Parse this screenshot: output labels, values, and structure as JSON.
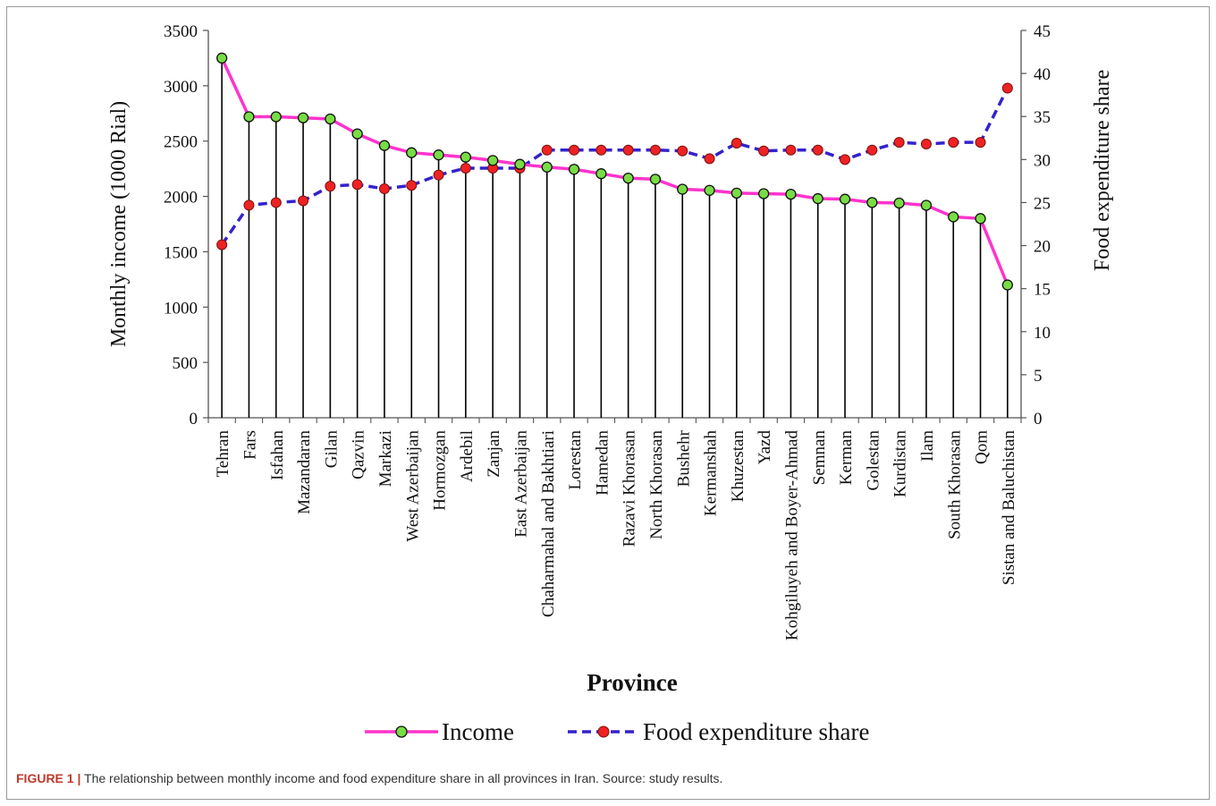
{
  "caption": {
    "label": "FIGURE 1 |",
    "text": "The relationship between monthly income and food expenditure share in all provinces in Iran. Source: study results."
  },
  "chart_data": {
    "type": "line",
    "xlabel": "Province",
    "ylabel": "Monthly income (1000 Rial)",
    "y2label": "Food expenditure share",
    "ylim": [
      0,
      3500
    ],
    "yticks": [
      0,
      500,
      1000,
      1500,
      2000,
      2500,
      3000,
      3500
    ],
    "y2lim": [
      0,
      45
    ],
    "y2ticks": [
      0,
      5,
      10,
      15,
      20,
      25,
      30,
      35,
      40,
      45
    ],
    "legend_position": "bottom",
    "grid": false,
    "categories": [
      "Tehran",
      "Fars",
      "Isfahan",
      "Mazandaran",
      "Gilan",
      "Qazvin",
      "Markazi",
      "West Azerbaijan",
      "Hormozgan",
      "Ardebil",
      "Zanjan",
      "East Azerbaijan",
      "Chaharmahal and Bakhtiari",
      "Lorestan",
      "Hamedan",
      "Razavi Khorasan",
      "North Khorasan",
      "Bushehr",
      "Kermanshah",
      "Khuzestan",
      "Yazd",
      "Kohgiluyeh and Boyer-Ahmad",
      "Semnan",
      "Kerman",
      "Golestan",
      "Kurdistan",
      "Ilam",
      "South Khorasan",
      "Qom",
      "Sistan and Baluchistan"
    ],
    "series": [
      {
        "name": "Income",
        "axis": "left",
        "color": "#ff33cc",
        "marker_color": "#77dd44",
        "line_style": "solid",
        "values": [
          3250,
          2720,
          2720,
          2710,
          2700,
          2565,
          2460,
          2395,
          2375,
          2355,
          2325,
          2290,
          2265,
          2245,
          2205,
          2165,
          2155,
          2065,
          2055,
          2030,
          2025,
          2020,
          1980,
          1975,
          1945,
          1940,
          1920,
          1815,
          1800,
          1200
        ]
      },
      {
        "name": "Food expenditure share",
        "axis": "right",
        "color": "#3322cc",
        "marker_color": "#ee2222",
        "line_style": "dashed",
        "values": [
          20.1,
          24.7,
          25.0,
          25.2,
          26.9,
          27.1,
          26.6,
          27.0,
          28.2,
          29.0,
          29.0,
          29.0,
          31.1,
          31.1,
          31.1,
          31.1,
          31.1,
          31.0,
          30.1,
          31.9,
          31.0,
          31.1,
          31.1,
          30.0,
          31.1,
          32.0,
          31.8,
          32.0,
          32.0,
          38.3
        ]
      }
    ]
  }
}
